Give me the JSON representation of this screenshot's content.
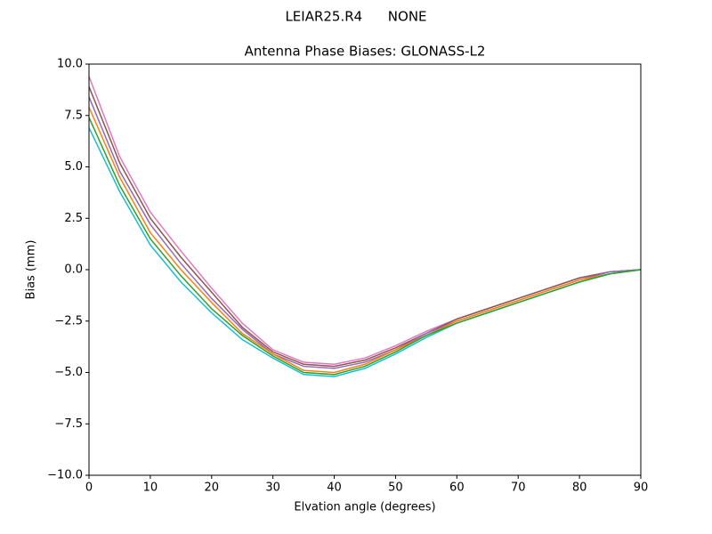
{
  "chart_data": {
    "type": "line",
    "suptitle": "LEIAR25.R4      NONE",
    "title": "Antenna Phase Biases: GLONASS-L2",
    "xlabel": "Elvation angle (degrees)",
    "ylabel": "Bias (mm)",
    "x": [
      0,
      5,
      10,
      15,
      20,
      25,
      30,
      35,
      40,
      45,
      50,
      55,
      60,
      65,
      70,
      75,
      80,
      85,
      90
    ],
    "series": [
      {
        "color": "#e377c2",
        "values": [
          9.4,
          5.5,
          2.8,
          0.9,
          -0.9,
          -2.6,
          -3.9,
          -4.5,
          -4.6,
          -4.3,
          -3.7,
          -3.0,
          -2.4,
          -1.9,
          -1.4,
          -0.9,
          -0.4,
          -0.1,
          0
        ]
      },
      {
        "color": "#8c564b",
        "values": [
          8.9,
          5.2,
          2.5,
          0.6,
          -1.1,
          -2.8,
          -4.0,
          -4.6,
          -4.7,
          -4.4,
          -3.8,
          -3.1,
          -2.4,
          -1.9,
          -1.4,
          -0.9,
          -0.4,
          -0.1,
          0
        ]
      },
      {
        "color": "#9467bd",
        "values": [
          8.4,
          4.8,
          2.2,
          0.3,
          -1.4,
          -2.9,
          -4.1,
          -4.7,
          -4.8,
          -4.5,
          -3.9,
          -3.1,
          -2.5,
          -2.0,
          -1.5,
          -1.0,
          -0.5,
          -0.1,
          0
        ]
      },
      {
        "color": "#ff7f0e",
        "values": [
          7.9,
          4.5,
          1.8,
          0.0,
          -1.6,
          -3.1,
          -4.1,
          -4.9,
          -5.0,
          -4.6,
          -3.9,
          -3.2,
          -2.5,
          -2.0,
          -1.5,
          -1.0,
          -0.5,
          -0.2,
          0
        ]
      },
      {
        "color": "#17becf",
        "values": [
          6.9,
          3.8,
          1.2,
          -0.6,
          -2.1,
          -3.4,
          -4.3,
          -5.1,
          -5.2,
          -4.8,
          -4.1,
          -3.3,
          -2.6,
          -2.1,
          -1.6,
          -1.1,
          -0.6,
          -0.2,
          0
        ]
      },
      {
        "color": "#2ca02c",
        "values": [
          7.4,
          4.1,
          1.5,
          -0.3,
          -1.9,
          -3.2,
          -4.2,
          -5.0,
          -5.1,
          -4.7,
          -4.0,
          -3.2,
          -2.6,
          -2.1,
          -1.6,
          -1.1,
          -0.6,
          -0.2,
          0
        ]
      }
    ],
    "xlim": [
      0,
      90
    ],
    "xticks": [
      0,
      10,
      20,
      30,
      40,
      50,
      60,
      70,
      80,
      90
    ],
    "ylim": [
      -10,
      10
    ],
    "yticks": [
      {
        "value": -10,
        "label": "−10.0"
      },
      {
        "value": -7.5,
        "label": "−7.5"
      },
      {
        "value": -5,
        "label": "−5.0"
      },
      {
        "value": -2.5,
        "label": "−2.5"
      },
      {
        "value": 0,
        "label": "0.0"
      },
      {
        "value": 2.5,
        "label": "2.5"
      },
      {
        "value": 5,
        "label": "5.0"
      },
      {
        "value": 7.5,
        "label": "7.5"
      },
      {
        "value": 10,
        "label": "10.0"
      }
    ],
    "grid": false
  }
}
